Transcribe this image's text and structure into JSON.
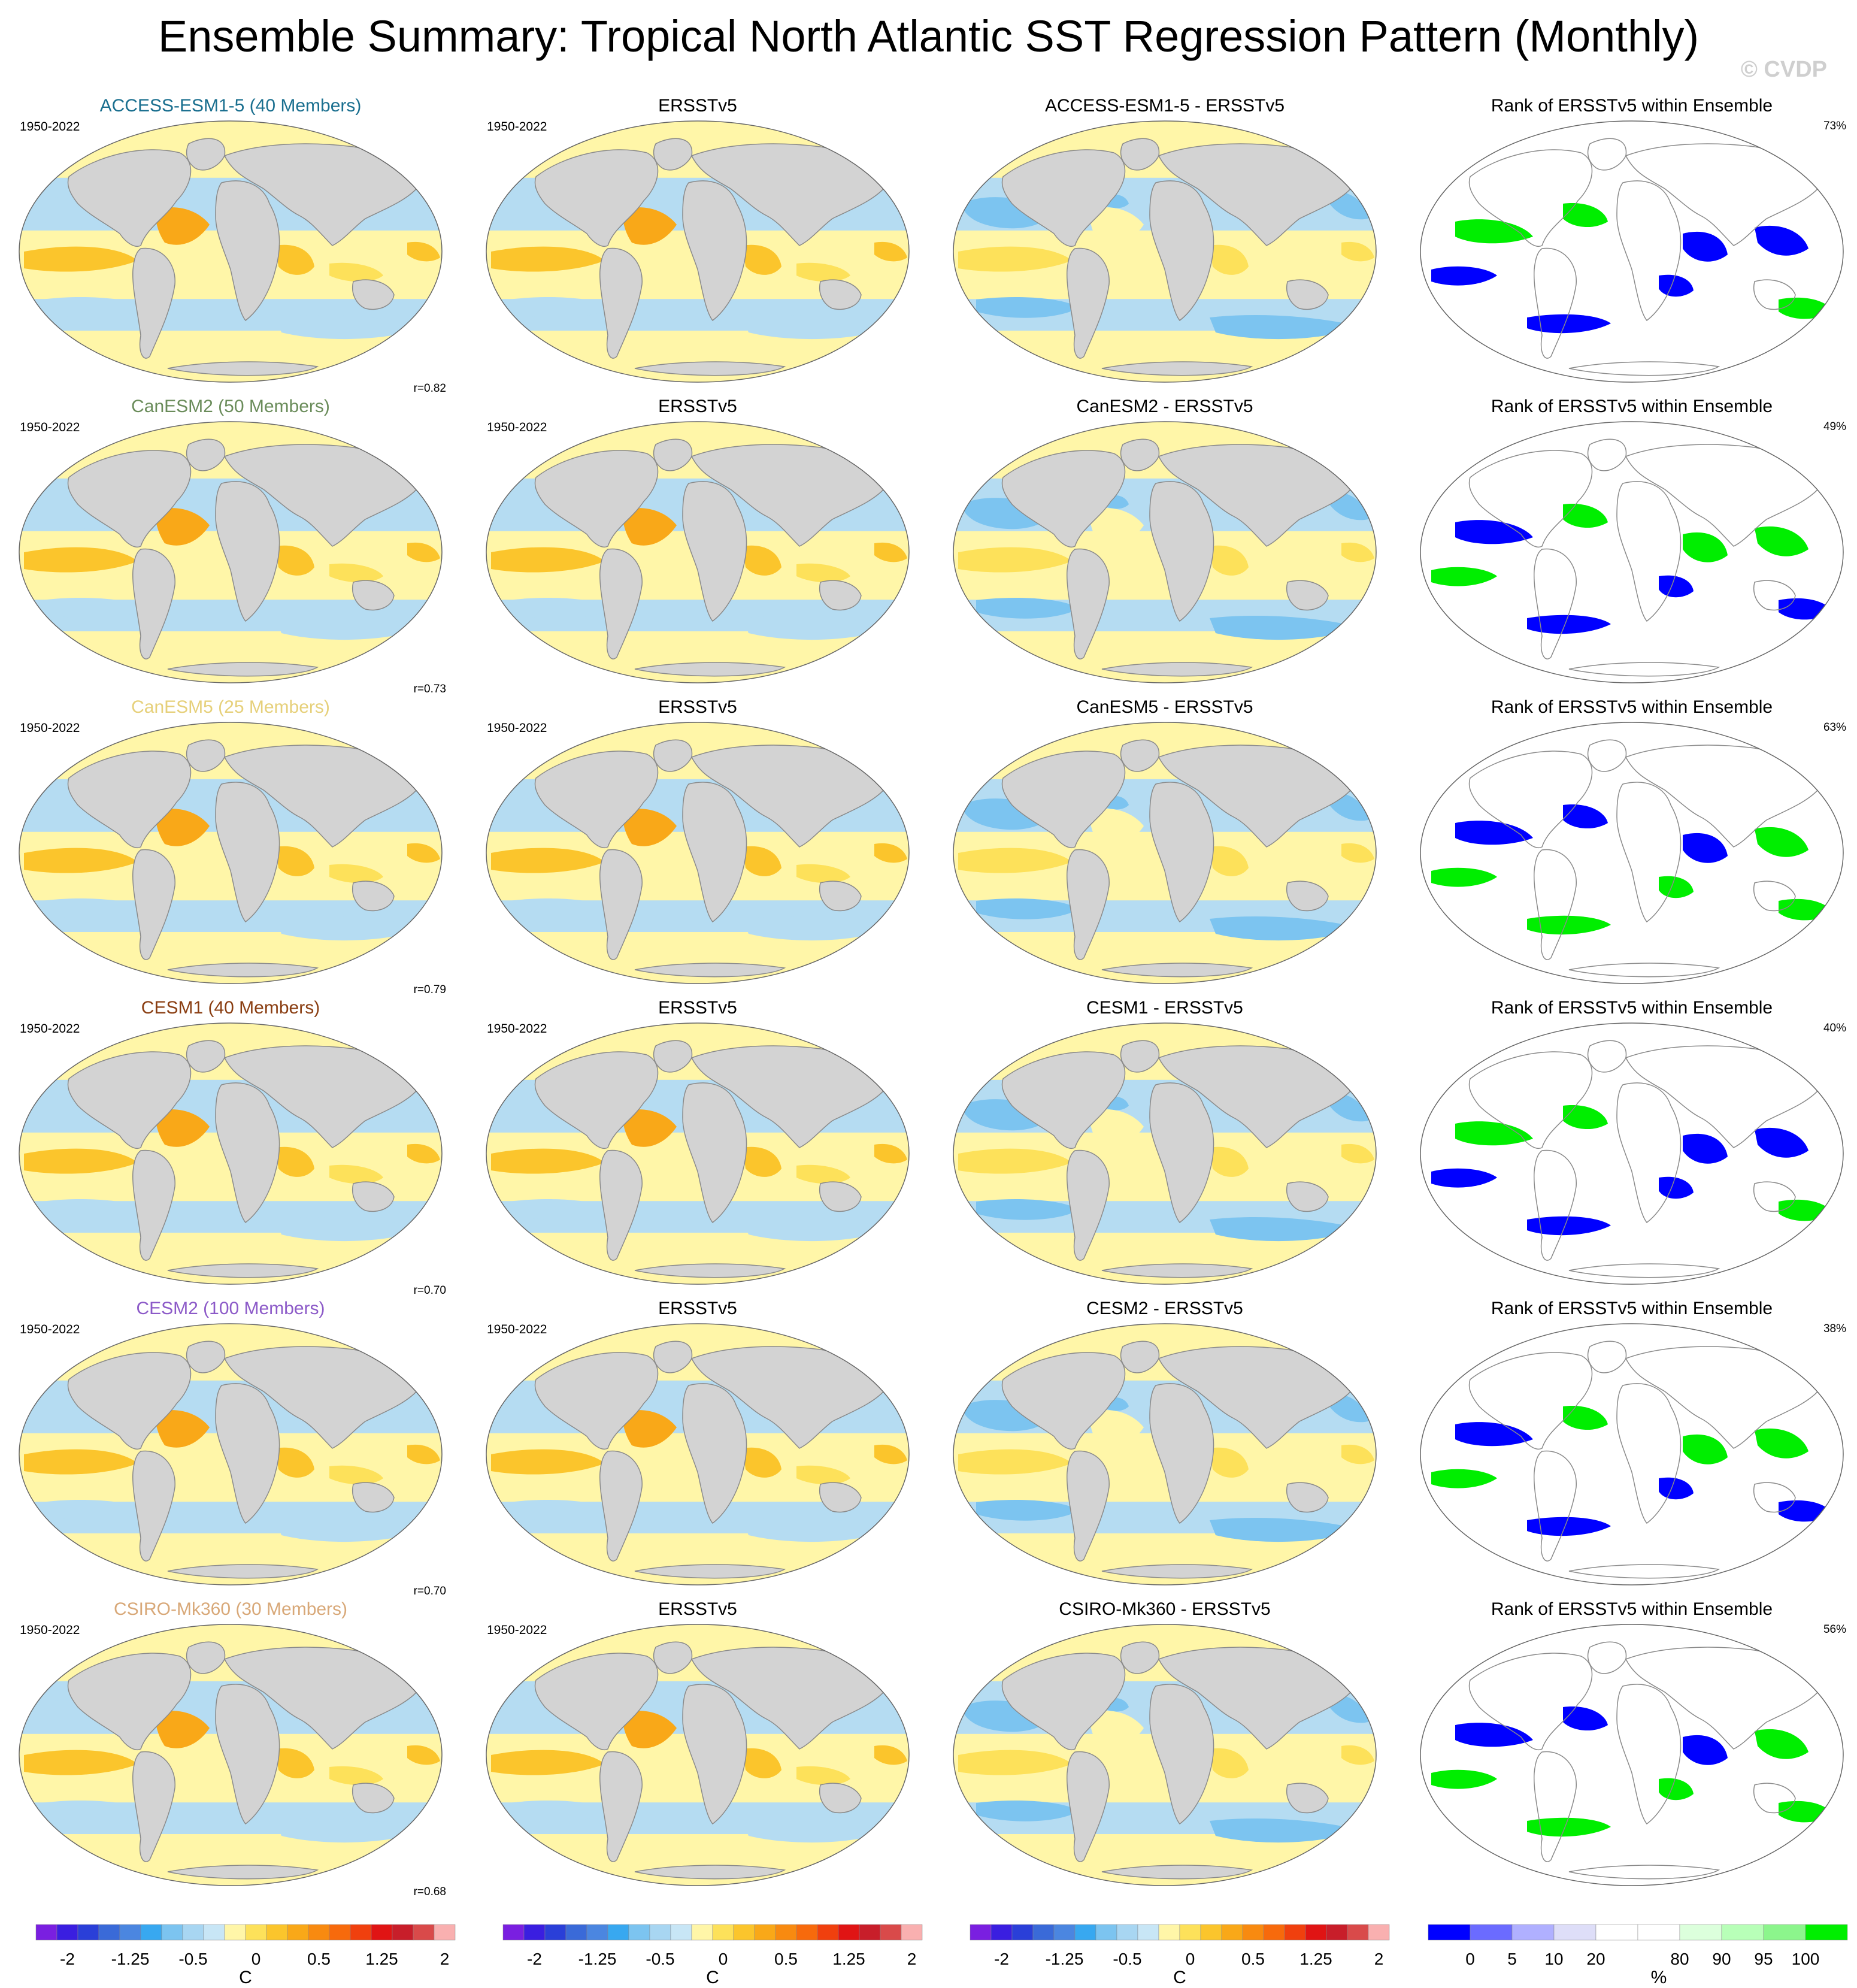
{
  "title": "Ensemble Summary: Tropical North Atlantic SST Regression Pattern (Monthly)",
  "copyright": "© CVDP",
  "columns": {
    "obs_title": "ERSSTv5",
    "rank_title": "Rank of ERSSTv5 within Ensemble"
  },
  "rows": [
    {
      "model_title": "ACCESS-ESM1-5 (40 Members)",
      "title_color": "#1a6f8f",
      "years": "1950-2022",
      "obs_years": "1950-2022",
      "diff_title": "ACCESS-ESM1-5 - ERSSTv5",
      "corr": "r=0.82",
      "rank_pct": "73%"
    },
    {
      "model_title": "CanESM2 (50 Members)",
      "title_color": "#6a8c5a",
      "years": "1950-2022",
      "obs_years": "1950-2022",
      "diff_title": "CanESM2 - ERSSTv5",
      "corr": "r=0.73",
      "rank_pct": "49%"
    },
    {
      "model_title": "CanESM5 (25 Members)",
      "title_color": "#e6d07a",
      "years": "1950-2022",
      "obs_years": "1950-2022",
      "diff_title": "CanESM5 - ERSSTv5",
      "corr": "r=0.79",
      "rank_pct": "63%"
    },
    {
      "model_title": "CESM1 (40 Members)",
      "title_color": "#8a3e12",
      "years": "1950-2022",
      "obs_years": "1950-2022",
      "diff_title": "CESM1 - ERSSTv5",
      "corr": "r=0.70",
      "rank_pct": "40%"
    },
    {
      "model_title": "CESM2 (100 Members)",
      "title_color": "#8c5ac8",
      "years": "1950-2022",
      "obs_years": "1950-2022",
      "diff_title": "CESM2 - ERSSTv5",
      "corr": "r=0.70",
      "rank_pct": "38%"
    },
    {
      "model_title": "CSIRO-Mk360 (30 Members)",
      "title_color": "#d8a878",
      "years": "1950-2022",
      "obs_years": "1950-2022",
      "diff_title": "CSIRO-Mk360 - ERSSTv5",
      "corr": "r=0.68",
      "rank_pct": "56%"
    }
  ],
  "colorbar_sst": {
    "colors": [
      "#7a1fe0",
      "#3a1ee0",
      "#2a3fd8",
      "#3a6ad8",
      "#4b86e0",
      "#38a8f0",
      "#7cc4f0",
      "#a8d6f2",
      "#c8e6f6",
      "#fff6a8",
      "#fde15a",
      "#fbc52c",
      "#f9a818",
      "#f88a10",
      "#f76a0c",
      "#f0400e",
      "#e01414",
      "#c81e2a",
      "#d94a4a",
      "#f9b0b0"
    ],
    "labels": [
      "-2",
      "-1.25",
      "-0.5",
      "0",
      "0.5",
      "1.25",
      "2"
    ],
    "unit": "C"
  },
  "colorbar_rank": {
    "colors": [
      "#0000ff",
      "#6b6bff",
      "#b0b0ff",
      "#dedef8",
      "#ffffff",
      "#ffffff",
      "#dcffdc",
      "#b8ffb8",
      "#8cf58c",
      "#00ee00"
    ],
    "labels": [
      "0",
      "5",
      "10",
      "20",
      "80",
      "90",
      "95",
      "100"
    ],
    "unit": "%"
  },
  "palette": {
    "ocean_neg": "#b5dcf2",
    "ocean_neg_strong": "#7cc4f0",
    "ocean_pos": "#fff6a8",
    "ocean_pos_mid": "#fde15a",
    "ocean_pos_strong": "#fbc52c",
    "ocean_pos_vstrong": "#f9a818",
    "land": "#d3d3d3",
    "rank_low": "#0000ff",
    "rank_high": "#00ee00"
  }
}
